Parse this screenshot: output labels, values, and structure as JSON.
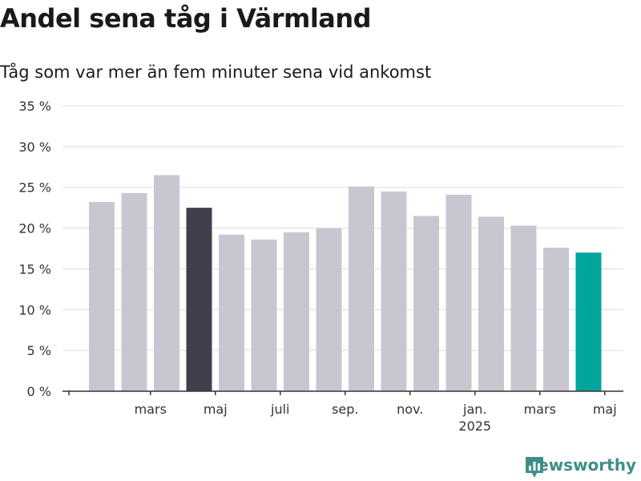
{
  "title": "Andel sena tåg i Värmland",
  "subtitle": "Tåg som var mer än fem minuter sena vid ankomst",
  "brand": {
    "name": "Newsworthy",
    "icon": "newsworthy-logo-icon",
    "color": "#3f8f88"
  },
  "chart_data": {
    "type": "bar",
    "unit": "%",
    "ylim": [
      0,
      35
    ],
    "yticks": [
      0,
      5,
      10,
      15,
      20,
      25,
      30,
      35
    ],
    "ytick_labels": [
      "0 %",
      "5 %",
      "10 %",
      "15 %",
      "20 %",
      "25 %",
      "30 %",
      "35 %"
    ],
    "grid": true,
    "categories": [
      "2024-02",
      "2024-03",
      "2024-04",
      "2024-05",
      "2024-06",
      "2024-07",
      "2024-08",
      "2024-09",
      "2024-10",
      "2024-11",
      "2024-12",
      "2025-01",
      "2025-02",
      "2025-03",
      "2025-04",
      "2025-05"
    ],
    "values": [
      23.2,
      24.3,
      26.5,
      22.5,
      19.2,
      18.6,
      19.5,
      20.0,
      25.1,
      24.5,
      21.5,
      24.1,
      21.4,
      20.3,
      17.6,
      17.0
    ],
    "x_tick_labels": [
      {
        "category": "2024-03",
        "label": "mars"
      },
      {
        "category": "2024-05",
        "label": "maj"
      },
      {
        "category": "2024-07",
        "label": "juli"
      },
      {
        "category": "2024-09",
        "label": "sep."
      },
      {
        "category": "2024-11",
        "label": "nov."
      },
      {
        "category": "2025-01",
        "label": "jan.",
        "sublabel": "2025"
      },
      {
        "category": "2025-03",
        "label": "mars"
      },
      {
        "category": "2025-05",
        "label": "maj"
      }
    ],
    "colors": {
      "default": "#c8c7d1",
      "2024-05": "#40404c",
      "2025-05": "#00a69b"
    }
  }
}
